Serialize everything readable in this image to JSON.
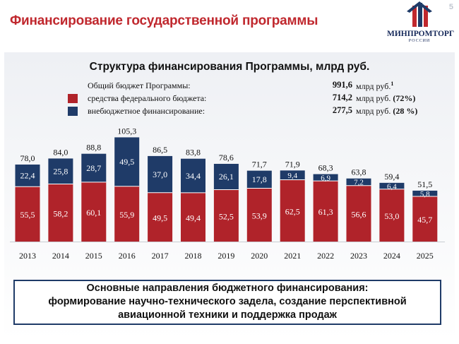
{
  "header": {
    "title": "Финансирование государственной программы",
    "page_number": "5",
    "logo_text": "МИНПРОМТОРГ",
    "logo_sub": "РОССИИ"
  },
  "legend": {
    "total": {
      "label": "Общий бюджет Программы:",
      "value": "991,6",
      "unit": "млрд руб.",
      "footnote": "1"
    },
    "federal": {
      "label": "средства федерального бюджета:",
      "value": "714,2",
      "unit": "млрд руб.",
      "share": "(72%)"
    },
    "extra": {
      "label": "внебюджетное финансирование:",
      "value": "277,5",
      "unit": "млрд руб.",
      "share": "(28 %)"
    }
  },
  "colors": {
    "federal": "#b0232a",
    "extra": "#1f3b68",
    "title": "#c0282e"
  },
  "chart_data": {
    "type": "bar",
    "stacked": true,
    "title": "Структура финансирования Программы, млрд руб.",
    "categories": [
      "2013",
      "2014",
      "2015",
      "2016",
      "2017",
      "2018",
      "2019",
      "2020",
      "2021",
      "2022",
      "2023",
      "2024",
      "2025"
    ],
    "series": [
      {
        "name": "средства федерального бюджета",
        "values": [
          55.5,
          58.2,
          60.1,
          55.9,
          49.5,
          49.4,
          52.5,
          53.9,
          62.5,
          61.3,
          56.6,
          53.0,
          45.7
        ]
      },
      {
        "name": "внебюджетное финансирование",
        "values": [
          22.4,
          25.8,
          28.7,
          49.5,
          37.0,
          34.4,
          26.1,
          17.8,
          9.4,
          6.9,
          7.2,
          6.4,
          5.8
        ]
      }
    ],
    "labels_federal": [
      "55,5",
      "58,2",
      "60,1",
      "55,9",
      "49,5",
      "49,4",
      "52,5",
      "53,9",
      "62,5",
      "61,3",
      "56,6",
      "53,0",
      "45,7"
    ],
    "labels_extra": [
      "22,4",
      "25,8",
      "28,7",
      "49,5",
      "37,0",
      "34,4",
      "26,1",
      "17,8",
      "9,4",
      "6,9",
      "7,2",
      "6,4",
      "5,8"
    ],
    "totals": [
      78.0,
      84.0,
      88.8,
      105.3,
      86.5,
      83.8,
      78.6,
      71.7,
      71.9,
      68.3,
      63.8,
      59.4,
      51.5
    ],
    "labels_total": [
      "78,0",
      "84,0",
      "88,8",
      "105,3",
      "86,5",
      "83,8",
      "78,6",
      "71,7",
      "71,9",
      "68,3",
      "63,8",
      "59,4",
      "51,5"
    ],
    "ylim": [
      0,
      105.3
    ],
    "grid": false,
    "legend_position": "top"
  },
  "bottom": {
    "line1": "Основные направления бюджетного финансирования:",
    "line2": "формирование научно-технического задела, создание перспективной",
    "line3": "авиационной техники и поддержка продаж"
  }
}
